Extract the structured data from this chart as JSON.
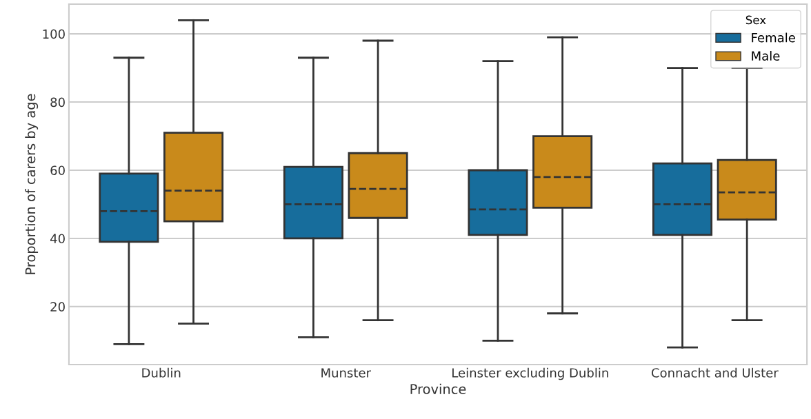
{
  "chart_data": {
    "type": "box",
    "xlabel": "Province",
    "ylabel": "Proportion of carers by age",
    "legend_title": "Sex",
    "categories": [
      "Dublin",
      "Munster",
      "Leinster excluding Dublin",
      "Connacht and Ulster"
    ],
    "series": [
      {
        "name": "Female",
        "color": "#176d9c",
        "boxes": [
          {
            "low": 9,
            "q1": 39,
            "median": 48,
            "q3": 59,
            "high": 93
          },
          {
            "low": 11,
            "q1": 40,
            "median": 50,
            "q3": 61,
            "high": 93
          },
          {
            "low": 10,
            "q1": 41,
            "median": 48.5,
            "q3": 60,
            "high": 92
          },
          {
            "low": 8,
            "q1": 41,
            "median": 50,
            "q3": 62,
            "high": 90
          }
        ]
      },
      {
        "name": "Male",
        "color": "#c98a1b",
        "boxes": [
          {
            "low": 15,
            "q1": 45,
            "median": 54,
            "q3": 71,
            "high": 104
          },
          {
            "low": 16,
            "q1": 46,
            "median": 54.5,
            "q3": 65,
            "high": 98
          },
          {
            "low": 18,
            "q1": 49,
            "median": 58,
            "q3": 70,
            "high": 99
          },
          {
            "low": 16,
            "q1": 45.5,
            "median": 53.5,
            "q3": 63,
            "high": 90
          }
        ]
      }
    ],
    "ylim": [
      3,
      108.7
    ],
    "yticks": [
      20,
      40,
      60,
      80,
      100
    ],
    "grid": "y",
    "legend": "top right"
  }
}
